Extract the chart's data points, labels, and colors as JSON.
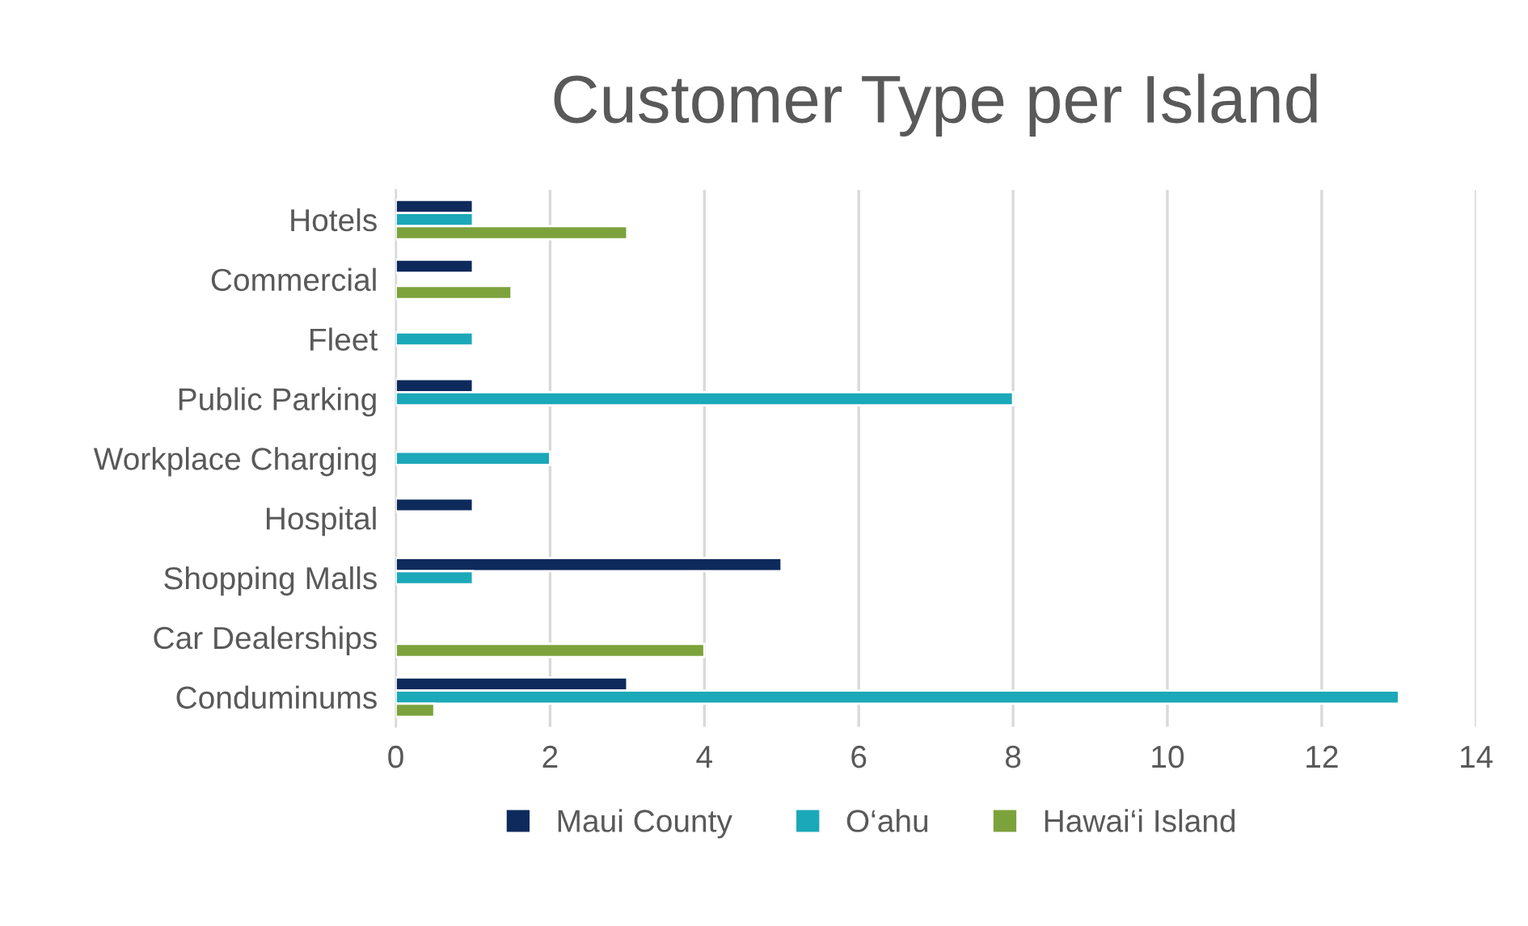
{
  "chart_data": {
    "type": "bar",
    "orientation": "horizontal",
    "title": "Customer Type per Island",
    "categories": [
      "Hotels",
      "Commercial",
      "Fleet",
      "Public Parking",
      "Workplace Charging",
      "Hospital",
      "Shopping Malls",
      "Car Dealerships",
      "Conduminums"
    ],
    "series": [
      {
        "name": "Maui County",
        "color": "#0e2a5c",
        "values": [
          1,
          1,
          null,
          1,
          null,
          1,
          5,
          null,
          3
        ]
      },
      {
        "name": "O‘ahu",
        "color": "#1ba8b8",
        "values": [
          1,
          null,
          1,
          8,
          2,
          null,
          1,
          null,
          13
        ]
      },
      {
        "name": "Hawai‘i Island",
        "color": "#7ca23c",
        "values": [
          3,
          1.5,
          null,
          null,
          null,
          null,
          null,
          4,
          0.5
        ]
      }
    ],
    "xlim": [
      0,
      14
    ],
    "xticks": [
      0,
      2,
      4,
      6,
      8,
      10,
      12,
      14
    ],
    "grid": "x",
    "legend": "bottom"
  }
}
